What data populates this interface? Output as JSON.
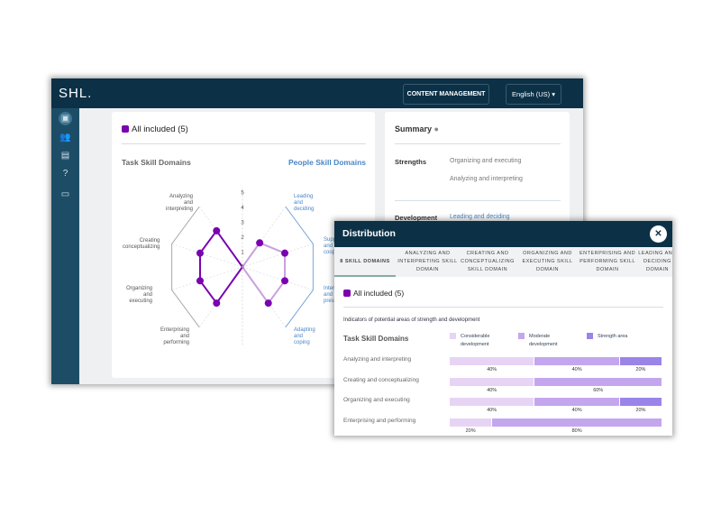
{
  "header": {
    "logo": "SHL.",
    "content_management": "CONTENT MANAGEMENT",
    "language": "English (US)"
  },
  "sidebar": {
    "icons": [
      "report-icon",
      "users-icon",
      "clipboard-icon",
      "help-icon",
      "chat-icon"
    ]
  },
  "main": {
    "filter": "All included (5)",
    "task_title": "Task Skill Domains",
    "people_title": "People Skill Domains"
  },
  "summary": {
    "title": "Summary",
    "strengths_label": "Strengths",
    "strengths": [
      "Organizing and executing",
      "Analyzing and interpreting"
    ],
    "development_label": "Development",
    "development": [
      "Leading and deciding"
    ]
  },
  "chart_data": {
    "type": "radar",
    "scale": [
      0,
      1,
      2,
      3,
      4,
      5
    ],
    "task": {
      "axes": [
        "Analyzing and interpreting",
        "Creating conceptualizing",
        "Organizing and executing",
        "Enterprising and performing"
      ],
      "values": [
        3,
        3,
        3,
        3
      ],
      "color": "#7a00b0"
    },
    "people": {
      "axes": [
        "Leading and deciding",
        "Supporting and cooperating",
        "Interacting and presenting",
        "Adapting and coping"
      ],
      "values": [
        2,
        3,
        3,
        3
      ],
      "color": "#c9a0e0"
    }
  },
  "modal": {
    "title": "Distribution",
    "tabs": [
      "8 SKILL DOMAINS",
      "ANALYZING AND INTERPRETING SKILL DOMAIN",
      "CREATING AND CONCEPTUALIZING SKILL DOMAIN",
      "ORGANIZING AND EXECUTING SKILL DOMAIN",
      "ENTERPRISING AND PERFORMING SKILL DOMAIN",
      "LEADING AND DECIDING DOMAIN"
    ],
    "filter": "All included (5)",
    "indicators": "Indicators of potential areas of strength and development",
    "section": "Task Skill Domains",
    "legend": [
      {
        "label": "Considerable development",
        "color": "#e7d4f5"
      },
      {
        "label": "Moderate development",
        "color": "#c4a6ef"
      },
      {
        "label": "Strength area",
        "color": "#9b84e8"
      }
    ],
    "rows": [
      {
        "label": "Analyzing and interpreting",
        "values": [
          40,
          40,
          20
        ]
      },
      {
        "label": "Creating and conceptualizing",
        "values": [
          40,
          60,
          0
        ]
      },
      {
        "label": "Organizing and executing",
        "values": [
          40,
          40,
          20
        ]
      },
      {
        "label": "Enterprising and performing",
        "values": [
          20,
          80,
          0
        ]
      }
    ]
  }
}
